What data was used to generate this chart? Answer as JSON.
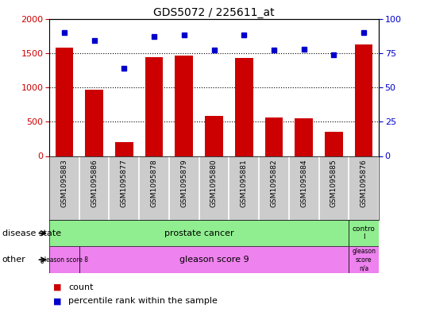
{
  "title": "GDS5072 / 225611_at",
  "samples": [
    "GSM1095883",
    "GSM1095886",
    "GSM1095877",
    "GSM1095878",
    "GSM1095879",
    "GSM1095880",
    "GSM1095881",
    "GSM1095882",
    "GSM1095884",
    "GSM1095885",
    "GSM1095876"
  ],
  "counts": [
    1580,
    960,
    200,
    1440,
    1460,
    580,
    1430,
    560,
    550,
    350,
    1620
  ],
  "percentiles": [
    90,
    84,
    64,
    87,
    88,
    77,
    88,
    77,
    78,
    74,
    90
  ],
  "ylim_left": [
    0,
    2000
  ],
  "ylim_right": [
    0,
    100
  ],
  "yticks_left": [
    0,
    500,
    1000,
    1500,
    2000
  ],
  "yticks_right": [
    0,
    25,
    50,
    75,
    100
  ],
  "bar_color": "#cc0000",
  "dot_color": "#0000cc",
  "label_bg": "#cccccc",
  "ds_color": "#90ee90",
  "other_color": "#ee82ee",
  "legend_items": [
    {
      "color": "#cc0000",
      "label": "count"
    },
    {
      "color": "#0000cc",
      "label": "percentile rank within the sample"
    }
  ],
  "background_color": "#ffffff"
}
